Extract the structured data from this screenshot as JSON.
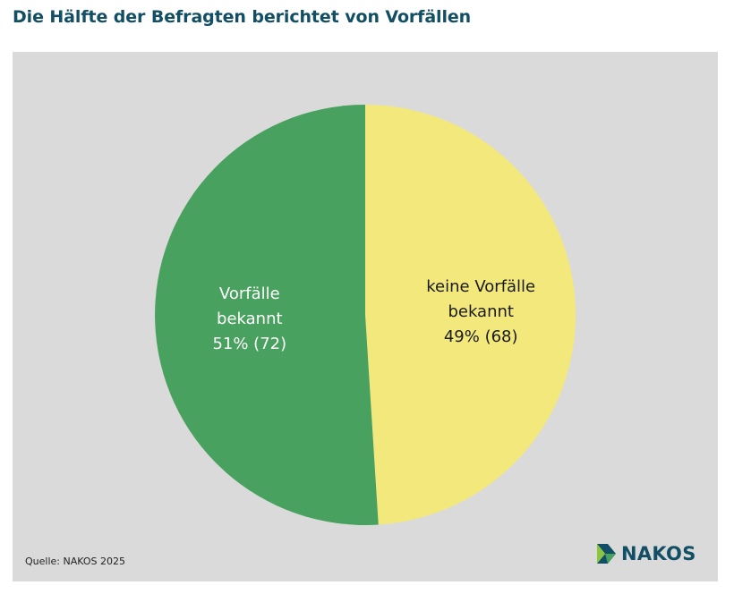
{
  "title": "Die Hälfte der Befragten berichtet von Vorfällen",
  "source": "Quelle: NAKOS 2025",
  "logo": {
    "text": "NAKOS",
    "icon": "nakos-logo-icon"
  },
  "colors": {
    "title": "#124f64",
    "panel_background": "#dadada",
    "slice_known": "#48a15e",
    "slice_none": "#f2e87b",
    "label_on_green": "#ffffff",
    "label_on_yellow": "#1a1a1a"
  },
  "chart_data": {
    "type": "pie",
    "title": "Die Hälfte der Befragten berichtet von Vorfällen",
    "slices": [
      {
        "label_lines": [
          "keine Vorfälle",
          "bekannt",
          "49% (68)"
        ],
        "percent": 49,
        "count": 68,
        "color": "#f2e87b",
        "text_color": "#1a1a1a"
      },
      {
        "label_lines": [
          "Vorfälle",
          "bekannt",
          "51% (72)"
        ],
        "percent": 51,
        "count": 72,
        "color": "#48a15e",
        "text_color": "#ffffff"
      }
    ],
    "start": "12 o'clock",
    "direction": "clockwise"
  }
}
